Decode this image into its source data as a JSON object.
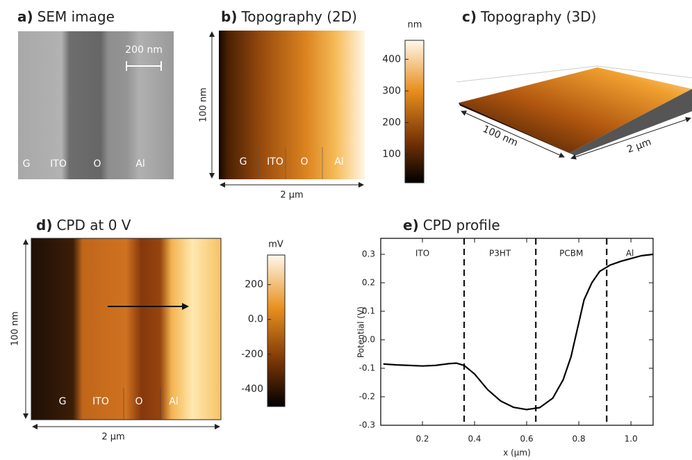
{
  "panels": {
    "a": {
      "letter": "a)",
      "title": "SEM image",
      "scale_bar": "200 nm",
      "labels": [
        "G",
        "ITO",
        "O",
        "Al"
      ]
    },
    "b": {
      "letter": "b)",
      "title": "Topography (2D)",
      "height_label": "100 nm",
      "width_label": "2 µm",
      "labels": [
        "G",
        "ITO",
        "O",
        "Al"
      ],
      "colorbar": {
        "unit": "nm",
        "lim": [
          10,
          460
        ],
        "ticks": [
          100,
          200,
          300,
          400
        ]
      }
    },
    "c": {
      "letter": "c)",
      "title": "Topography (3D)",
      "depth_label": "100 nm",
      "width_label": "2 µm"
    },
    "d": {
      "letter": "d)",
      "title": "CPD at 0 V",
      "height_label": "100 nm",
      "width_label": "2 µm",
      "labels": [
        "G",
        "ITO",
        "O",
        "Al"
      ],
      "colorbar": {
        "unit": "mV",
        "lim": [
          -500,
          370
        ],
        "ticks": [
          -400,
          -200,
          {
            "value": 0,
            "label": "0.0"
          },
          200
        ]
      }
    }
  },
  "chart_data": {
    "type": "line",
    "letter": "e)",
    "title": "CPD profile",
    "xlabel": "x (μm)",
    "ylabel": "Potential (V)",
    "color": "#000000",
    "x": [
      0.05,
      0.1,
      0.15,
      0.2,
      0.25,
      0.3,
      0.33,
      0.36,
      0.4,
      0.45,
      0.5,
      0.55,
      0.6,
      0.65,
      0.7,
      0.74,
      0.77,
      0.8,
      0.82,
      0.85,
      0.88,
      0.92,
      0.96,
      1.0,
      1.04,
      1.085
    ],
    "values": [
      -0.085,
      -0.088,
      -0.09,
      -0.092,
      -0.09,
      -0.084,
      -0.082,
      -0.09,
      -0.12,
      -0.175,
      -0.215,
      -0.237,
      -0.245,
      -0.238,
      -0.205,
      -0.14,
      -0.06,
      0.06,
      0.14,
      0.2,
      0.24,
      0.262,
      0.275,
      0.285,
      0.295,
      0.3
    ],
    "xlim": [
      0.04,
      1.085
    ],
    "ylim": [
      -0.3,
      0.356
    ],
    "xticks": [
      0.2,
      0.4,
      0.6,
      0.8,
      {
        "value": 1.0,
        "label": "1.0"
      }
    ],
    "yticks": [
      -0.3,
      -0.2,
      -0.1,
      {
        "value": 0,
        "label": "0.0"
      },
      0.1,
      0.2,
      0.3
    ],
    "dividers": [
      0.36,
      0.635,
      0.907
    ],
    "regions": [
      "ITO",
      "P3HT",
      "PCBM",
      "Al"
    ]
  }
}
